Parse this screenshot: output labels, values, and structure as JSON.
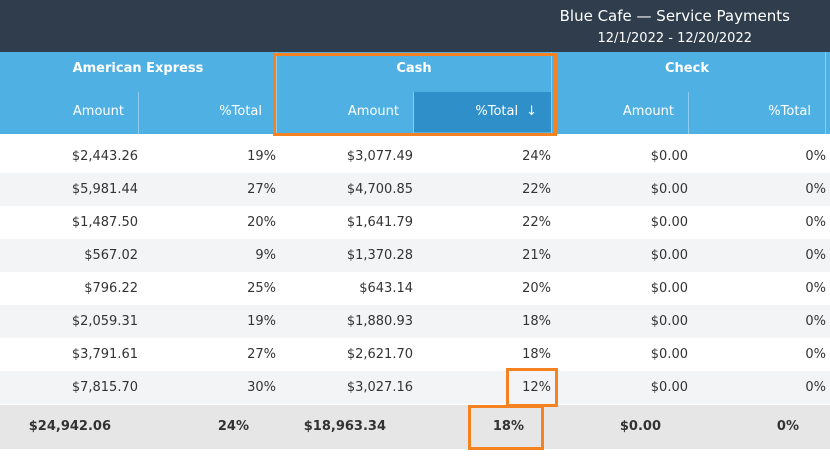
{
  "header": {
    "title": "Blue Cafe — Service Payments",
    "date_range": "12/1/2022 - 12/20/2022"
  },
  "groups": [
    "American Express",
    "Cash",
    "Check"
  ],
  "columns": [
    "Amount",
    "%Total",
    "Amount",
    "%Total",
    "Amount",
    "%Total"
  ],
  "sort_icon": "↓",
  "rows": [
    [
      "$2,443.26",
      "19%",
      "$3,077.49",
      "24%",
      "$0.00",
      "0%"
    ],
    [
      "$5,981.44",
      "27%",
      "$4,700.85",
      "22%",
      "$0.00",
      "0%"
    ],
    [
      "$1,487.50",
      "20%",
      "$1,641.79",
      "22%",
      "$0.00",
      "0%"
    ],
    [
      "$567.02",
      "9%",
      "$1,370.28",
      "21%",
      "$0.00",
      "0%"
    ],
    [
      "$796.22",
      "25%",
      "$643.14",
      "20%",
      "$0.00",
      "0%"
    ],
    [
      "$2,059.31",
      "19%",
      "$1,880.93",
      "18%",
      "$0.00",
      "0%"
    ],
    [
      "$3,791.61",
      "27%",
      "$2,621.70",
      "18%",
      "$0.00",
      "0%"
    ],
    [
      "$7,815.70",
      "30%",
      "$3,027.16",
      "12%",
      "$0.00",
      "0%"
    ]
  ],
  "totals": [
    "$24,942.06",
    "24%",
    "$18,963.34",
    "18%",
    "$0.00",
    "0%"
  ],
  "colors": {
    "topbar": "#2f3d4c",
    "header_blue": "#4fb0e3",
    "sorted_column": "#2f8fc9",
    "highlight": "#f58220"
  }
}
